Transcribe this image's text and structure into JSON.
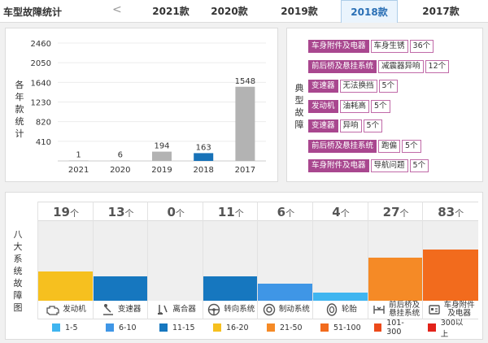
{
  "header": {
    "title": "车型故障统计",
    "prev_arrow": "<",
    "tabs": [
      {
        "label": "2021款",
        "active": false
      },
      {
        "label": "2020款",
        "active": false
      },
      {
        "label": "2019款",
        "active": false
      },
      {
        "label": "2018款",
        "active": true
      },
      {
        "label": "2017款",
        "active": false
      }
    ]
  },
  "year_chart": {
    "vertical_label": "各年款统计",
    "accent_color": "#1772b8",
    "bar_color": "#b3b3b3"
  },
  "chart_data": {
    "type": "bar",
    "categories": [
      "2021",
      "2020",
      "2019",
      "2018",
      "2017"
    ],
    "values": [
      1,
      6,
      194,
      163,
      1548
    ],
    "highlight": "2018",
    "yticks": [
      410,
      820,
      1230,
      1640,
      2050,
      2460
    ],
    "ylim": [
      0,
      2460
    ],
    "xlabel": "",
    "ylabel": "各年款统计"
  },
  "typical_faults": {
    "vertical_label": "典型故障",
    "items": [
      {
        "system": "车身附件及电器",
        "issue": "车身生锈",
        "count": "36个"
      },
      {
        "system": "前后桥及悬挂系统",
        "issue": "减震器异响",
        "count": "12个"
      },
      {
        "system": "变速器",
        "issue": "无法换挡",
        "count": "5个"
      },
      {
        "system": "发动机",
        "issue": "油耗高",
        "count": "5个"
      },
      {
        "system": "变速器",
        "issue": "异响",
        "count": "5个"
      },
      {
        "system": "前后桥及悬挂系统",
        "issue": "跑偏",
        "count": "5个"
      },
      {
        "system": "车身附件及电器",
        "issue": "导航问题",
        "count": "5个"
      }
    ]
  },
  "eight_systems": {
    "vertical_label": "八大系统故障图",
    "unit": "个",
    "columns": [
      {
        "count": "19",
        "label": "发动机",
        "icon": "engine-icon",
        "color": "#f6c01f",
        "level": 0.37
      },
      {
        "count": "13",
        "label": "变速器",
        "icon": "gear-shift-icon",
        "color": "#1677bf",
        "level": 0.31
      },
      {
        "count": "0",
        "label": "离合器",
        "icon": "clutch-pedal-icon",
        "color": "#efefef",
        "level": 0
      },
      {
        "count": "11",
        "label": "转向系统",
        "icon": "steering-wheel-icon",
        "color": "#1677bf",
        "level": 0.31
      },
      {
        "count": "6",
        "label": "制动系统",
        "icon": "brake-disc-icon",
        "color": "#3f96e6",
        "level": 0.21
      },
      {
        "count": "4",
        "label": "轮胎",
        "icon": "tire-icon",
        "color": "#3fb5f0",
        "level": 0.1
      },
      {
        "count": "27",
        "label": "前后桥及\n悬挂系统",
        "icon": "suspension-icon",
        "color": "#f58a26",
        "level": 0.54
      },
      {
        "count": "83",
        "label": "车身附件\n及电器",
        "icon": "car-body-icon",
        "color": "#f26b1d",
        "level": 0.64
      }
    ]
  },
  "legend": [
    {
      "label": "1-5",
      "color": "#3fb5f0"
    },
    {
      "label": "6-10",
      "color": "#3f96e6"
    },
    {
      "label": "11-15",
      "color": "#1677bf"
    },
    {
      "label": "16-20",
      "color": "#f6c01f"
    },
    {
      "label": "21-50",
      "color": "#f58a26"
    },
    {
      "label": "51-100",
      "color": "#f26b1d"
    },
    {
      "label": "101-300",
      "color": "#ec4a1a"
    },
    {
      "label": "300以上",
      "color": "#e2231a"
    }
  ]
}
